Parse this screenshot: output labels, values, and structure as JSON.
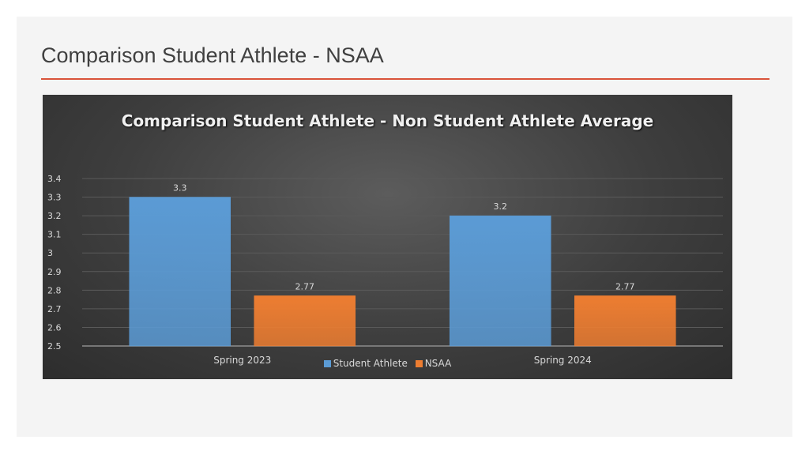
{
  "slide": {
    "title": "Comparison Student Athlete - NSAA",
    "accent_color": "#d9533a"
  },
  "chart_data": {
    "type": "bar",
    "title": "Comparison Student Athlete - Non Student Athlete Average",
    "categories": [
      "Spring 2023",
      "Spring 2024"
    ],
    "series": [
      {
        "name": "Student Athlete",
        "values": [
          3.3,
          3.2
        ],
        "color": "#5b9bd5"
      },
      {
        "name": "NSAA",
        "values": [
          2.77,
          2.77
        ],
        "color": "#ed7d31"
      }
    ],
    "data_labels": [
      [
        "3.3",
        "3.2"
      ],
      [
        "2.77",
        "2.77"
      ]
    ],
    "ylim": [
      2.5,
      3.4
    ],
    "yticks": [
      "2.5",
      "2.6",
      "2.7",
      "2.8",
      "2.9",
      "3",
      "3.1",
      "3.2",
      "3.3",
      "3.4"
    ],
    "grid": true,
    "legend_position": "bottom",
    "xlabel": "",
    "ylabel": ""
  }
}
